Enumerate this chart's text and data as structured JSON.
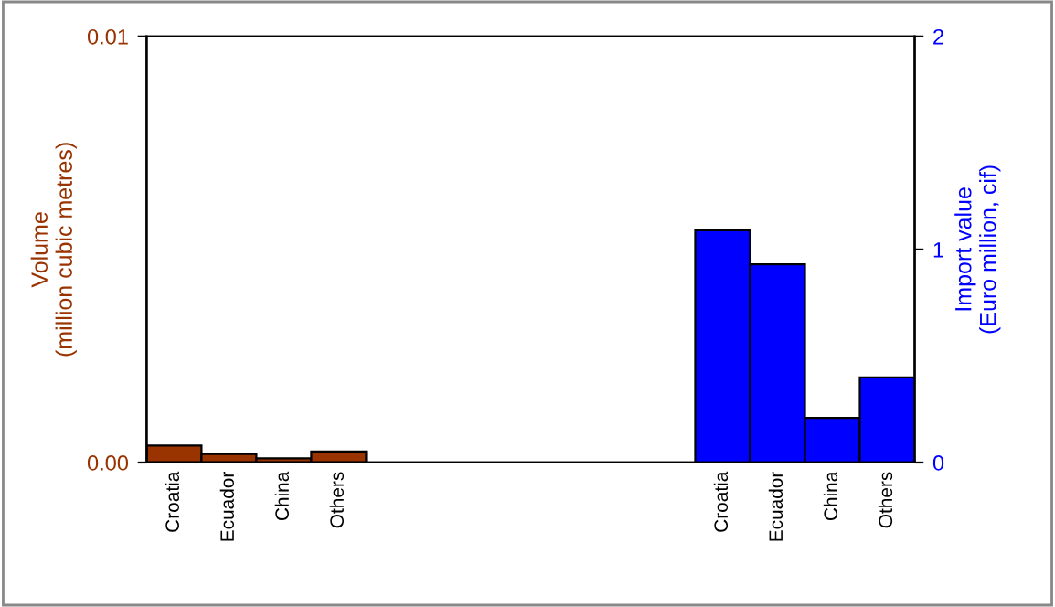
{
  "chart_data": {
    "type": "bar",
    "ylabel": "Volume\n(million cubic metres)",
    "y2label": "Import value\n(Euro million, cif)",
    "categories": [
      "Croatia",
      "Ecuador",
      "China",
      "Others",
      null,
      null,
      null,
      null,
      null,
      null,
      "Croatia",
      "Ecuador",
      "China",
      "Others"
    ],
    "series": [
      {
        "color": "#993300",
        "values": [
          0.0004,
          0.0002,
          0.0001,
          0.00026,
          null,
          null,
          null,
          null,
          null,
          null,
          null,
          null,
          null,
          null
        ]
      },
      {
        "color": "#0000ff",
        "axis": "y2",
        "values": [
          null,
          null,
          null,
          null,
          null,
          null,
          null,
          null,
          null,
          null,
          1.09,
          0.93,
          0.21,
          0.4
        ]
      }
    ],
    "ylim": [
      0,
      0.01
    ],
    "yticks": [
      {
        "value": 0,
        "label": "0.00"
      },
      {
        "value": 0.01,
        "label": "0.01"
      }
    ],
    "y2lim": [
      0,
      2
    ],
    "y2ticks": [
      0,
      1,
      2
    ],
    "grid": false,
    "legend": false
  }
}
